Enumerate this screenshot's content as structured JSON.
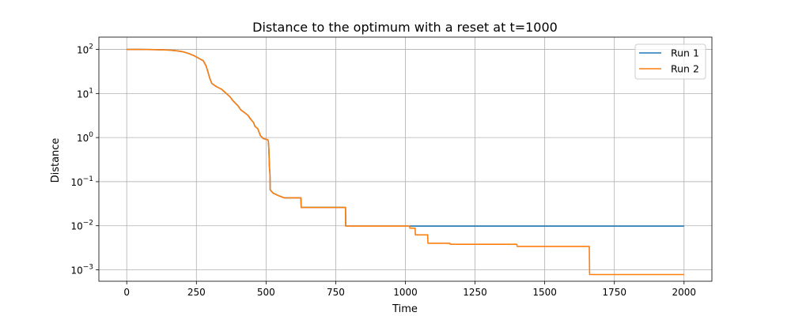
{
  "chart_data": {
    "type": "line",
    "title": "Distance to the optimum with a reset at t=1000",
    "xlabel": "Time",
    "ylabel": "Distance",
    "xlim": [
      -100,
      2100
    ],
    "ylim": [
      0.00055,
      190
    ],
    "yscale": "log",
    "grid": true,
    "legend": "top-right",
    "x_ticks": [
      0,
      250,
      500,
      750,
      1000,
      1250,
      1500,
      1750,
      2000
    ],
    "y_ticks": [
      {
        "value": 100,
        "base": "10",
        "exp": "2"
      },
      {
        "value": 10,
        "base": "10",
        "exp": "1"
      },
      {
        "value": 1,
        "base": "10",
        "exp": "0"
      },
      {
        "value": 0.1,
        "base": "10",
        "exp": "−1"
      },
      {
        "value": 0.01,
        "base": "10",
        "exp": "−2"
      },
      {
        "value": 0.001,
        "base": "10",
        "exp": "−3"
      }
    ],
    "series": [
      {
        "name": "Run 1",
        "color": "#1f77b4",
        "points": [
          [
            0,
            100
          ],
          [
            50,
            100
          ],
          [
            100,
            99
          ],
          [
            150,
            97
          ],
          [
            180,
            93
          ],
          [
            200,
            89
          ],
          [
            220,
            82
          ],
          [
            240,
            73
          ],
          [
            260,
            62
          ],
          [
            275,
            55
          ],
          [
            285,
            42
          ],
          [
            292,
            30
          ],
          [
            298,
            22
          ],
          [
            305,
            17
          ],
          [
            320,
            14.5
          ],
          [
            340,
            12.5
          ],
          [
            350,
            11
          ],
          [
            370,
            8.5
          ],
          [
            380,
            7
          ],
          [
            390,
            6
          ],
          [
            400,
            5.2
          ],
          [
            410,
            4.2
          ],
          [
            420,
            3.8
          ],
          [
            435,
            3.2
          ],
          [
            445,
            2.6
          ],
          [
            455,
            2.2
          ],
          [
            460,
            1.8
          ],
          [
            470,
            1.6
          ],
          [
            480,
            1.1
          ],
          [
            490,
            0.95
          ],
          [
            505,
            0.9
          ],
          [
            508,
            0.85
          ],
          [
            510,
            0.55
          ],
          [
            512,
            0.22
          ],
          [
            514,
            0.15
          ],
          [
            515,
            0.065
          ],
          [
            525,
            0.055
          ],
          [
            545,
            0.048
          ],
          [
            565,
            0.043
          ],
          [
            625,
            0.043
          ],
          [
            626,
            0.026
          ],
          [
            785,
            0.026
          ],
          [
            786,
            0.0098
          ],
          [
            2000,
            0.0098
          ]
        ]
      },
      {
        "name": "Run 2",
        "color": "#ff7f0e",
        "points": [
          [
            0,
            100
          ],
          [
            50,
            100
          ],
          [
            100,
            99
          ],
          [
            150,
            97
          ],
          [
            180,
            93
          ],
          [
            200,
            89
          ],
          [
            220,
            82
          ],
          [
            240,
            73
          ],
          [
            260,
            62
          ],
          [
            275,
            55
          ],
          [
            285,
            42
          ],
          [
            292,
            30
          ],
          [
            298,
            22
          ],
          [
            305,
            17
          ],
          [
            320,
            14.5
          ],
          [
            340,
            12.5
          ],
          [
            350,
            11
          ],
          [
            370,
            8.5
          ],
          [
            380,
            7
          ],
          [
            390,
            6
          ],
          [
            400,
            5.2
          ],
          [
            410,
            4.2
          ],
          [
            420,
            3.8
          ],
          [
            435,
            3.2
          ],
          [
            445,
            2.6
          ],
          [
            455,
            2.2
          ],
          [
            460,
            1.8
          ],
          [
            470,
            1.6
          ],
          [
            480,
            1.1
          ],
          [
            490,
            0.95
          ],
          [
            505,
            0.9
          ],
          [
            508,
            0.85
          ],
          [
            510,
            0.55
          ],
          [
            512,
            0.22
          ],
          [
            514,
            0.15
          ],
          [
            515,
            0.065
          ],
          [
            525,
            0.055
          ],
          [
            545,
            0.048
          ],
          [
            565,
            0.043
          ],
          [
            625,
            0.043
          ],
          [
            626,
            0.026
          ],
          [
            785,
            0.026
          ],
          [
            786,
            0.0098
          ],
          [
            1015,
            0.0098
          ],
          [
            1016,
            0.0088
          ],
          [
            1035,
            0.0088
          ],
          [
            1036,
            0.0062
          ],
          [
            1080,
            0.0062
          ],
          [
            1081,
            0.004
          ],
          [
            1160,
            0.004
          ],
          [
            1161,
            0.0038
          ],
          [
            1400,
            0.0038
          ],
          [
            1401,
            0.0034
          ],
          [
            1660,
            0.0034
          ],
          [
            1661,
            0.00078
          ],
          [
            2000,
            0.00078
          ]
        ]
      }
    ]
  }
}
